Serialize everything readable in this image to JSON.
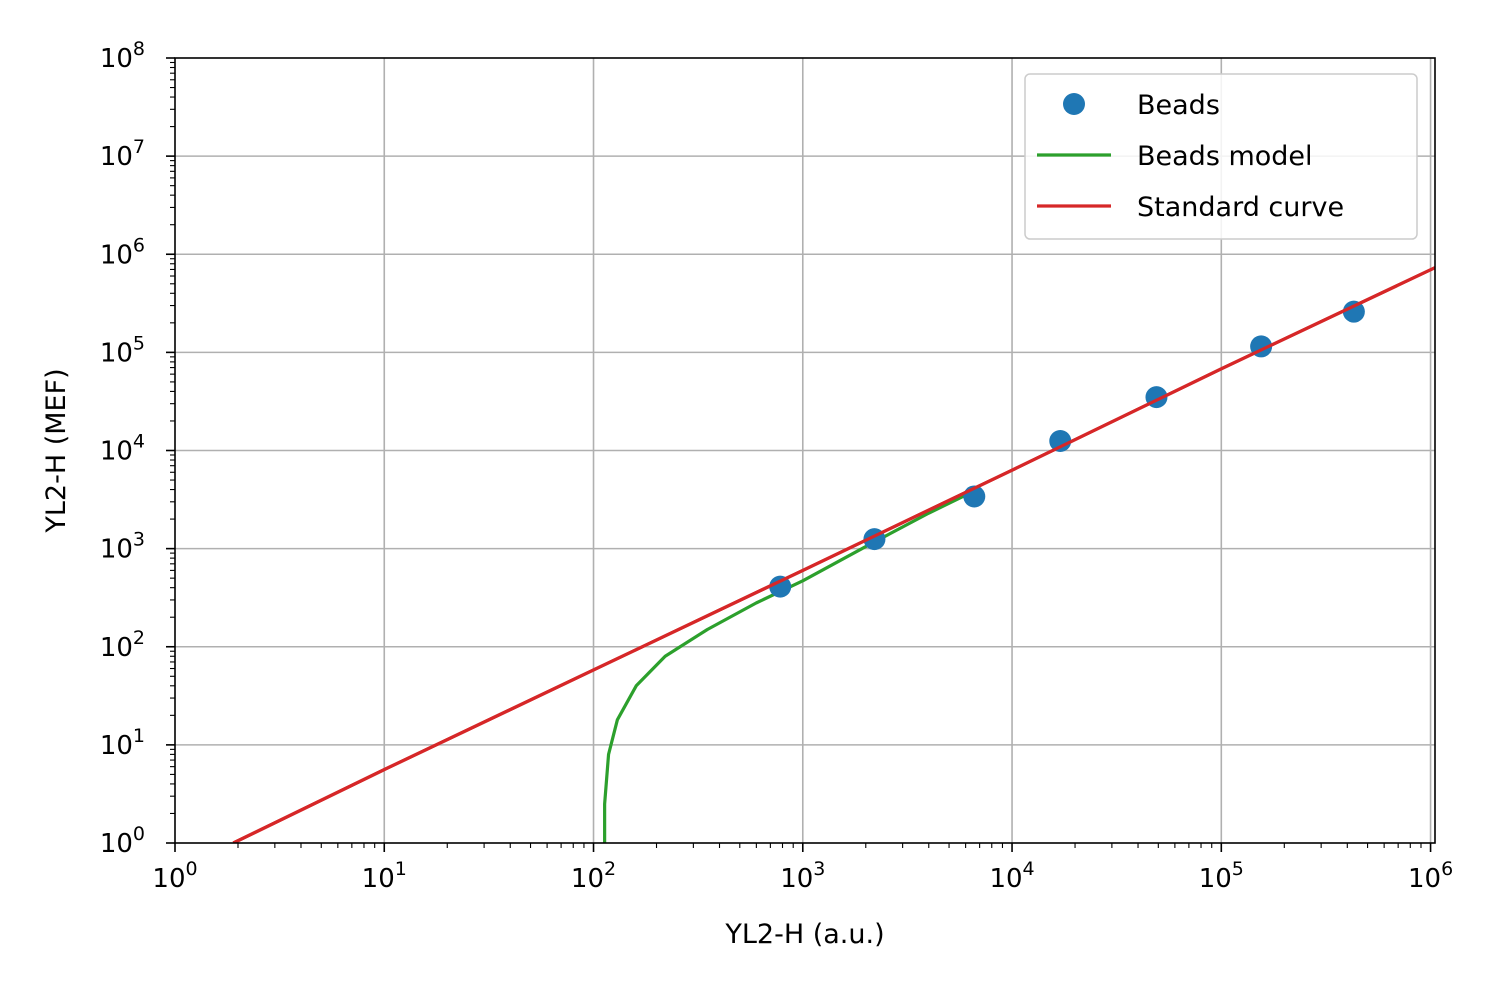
{
  "chart_data": {
    "type": "scatter",
    "title": "",
    "xlabel": "YL2-H (a.u.)",
    "ylabel": "YL2-H (MEF)",
    "xscale": "log",
    "yscale": "log",
    "xlim": [
      1,
      1050000
    ],
    "ylim": [
      1,
      100000000
    ],
    "x_ticks": [
      {
        "base": "10",
        "exp": "0"
      },
      {
        "base": "10",
        "exp": "1"
      },
      {
        "base": "10",
        "exp": "2"
      },
      {
        "base": "10",
        "exp": "3"
      },
      {
        "base": "10",
        "exp": "4"
      },
      {
        "base": "10",
        "exp": "5"
      },
      {
        "base": "10",
        "exp": "6"
      }
    ],
    "y_ticks": [
      {
        "base": "10",
        "exp": "0"
      },
      {
        "base": "10",
        "exp": "1"
      },
      {
        "base": "10",
        "exp": "2"
      },
      {
        "base": "10",
        "exp": "3"
      },
      {
        "base": "10",
        "exp": "4"
      },
      {
        "base": "10",
        "exp": "5"
      },
      {
        "base": "10",
        "exp": "6"
      },
      {
        "base": "10",
        "exp": "7"
      },
      {
        "base": "10",
        "exp": "8"
      }
    ],
    "grid": true,
    "legend_position": "top-right",
    "series": [
      {
        "name": "Beads",
        "kind": "points",
        "color": "#1f77b4",
        "points": [
          {
            "x": 780,
            "y": 410
          },
          {
            "x": 2200,
            "y": 1250
          },
          {
            "x": 6600,
            "y": 3400
          },
          {
            "x": 17000,
            "y": 12500
          },
          {
            "x": 49000,
            "y": 35000
          },
          {
            "x": 155000,
            "y": 115000
          },
          {
            "x": 430000,
            "y": 260000
          }
        ]
      },
      {
        "name": "Beads model",
        "kind": "line",
        "color": "#2ca02c",
        "points": [
          {
            "x": 113,
            "y": 1
          },
          {
            "x": 113,
            "y": 2.5
          },
          {
            "x": 118,
            "y": 8
          },
          {
            "x": 130,
            "y": 18
          },
          {
            "x": 160,
            "y": 40
          },
          {
            "x": 220,
            "y": 80
          },
          {
            "x": 350,
            "y": 150
          },
          {
            "x": 600,
            "y": 280
          },
          {
            "x": 1000,
            "y": 470
          },
          {
            "x": 2000,
            "y": 1050
          },
          {
            "x": 4000,
            "y": 2300
          },
          {
            "x": 6000,
            "y": 3500
          }
        ]
      },
      {
        "name": "Standard curve",
        "kind": "line",
        "color": "#d62728",
        "points": [
          {
            "x": 1.9,
            "y": 1
          },
          {
            "x": 10,
            "y": 5.6
          },
          {
            "x": 100,
            "y": 58
          },
          {
            "x": 1000,
            "y": 600
          },
          {
            "x": 10000,
            "y": 6300
          },
          {
            "x": 100000,
            "y": 68000
          },
          {
            "x": 1050000,
            "y": 730000
          }
        ]
      }
    ]
  }
}
